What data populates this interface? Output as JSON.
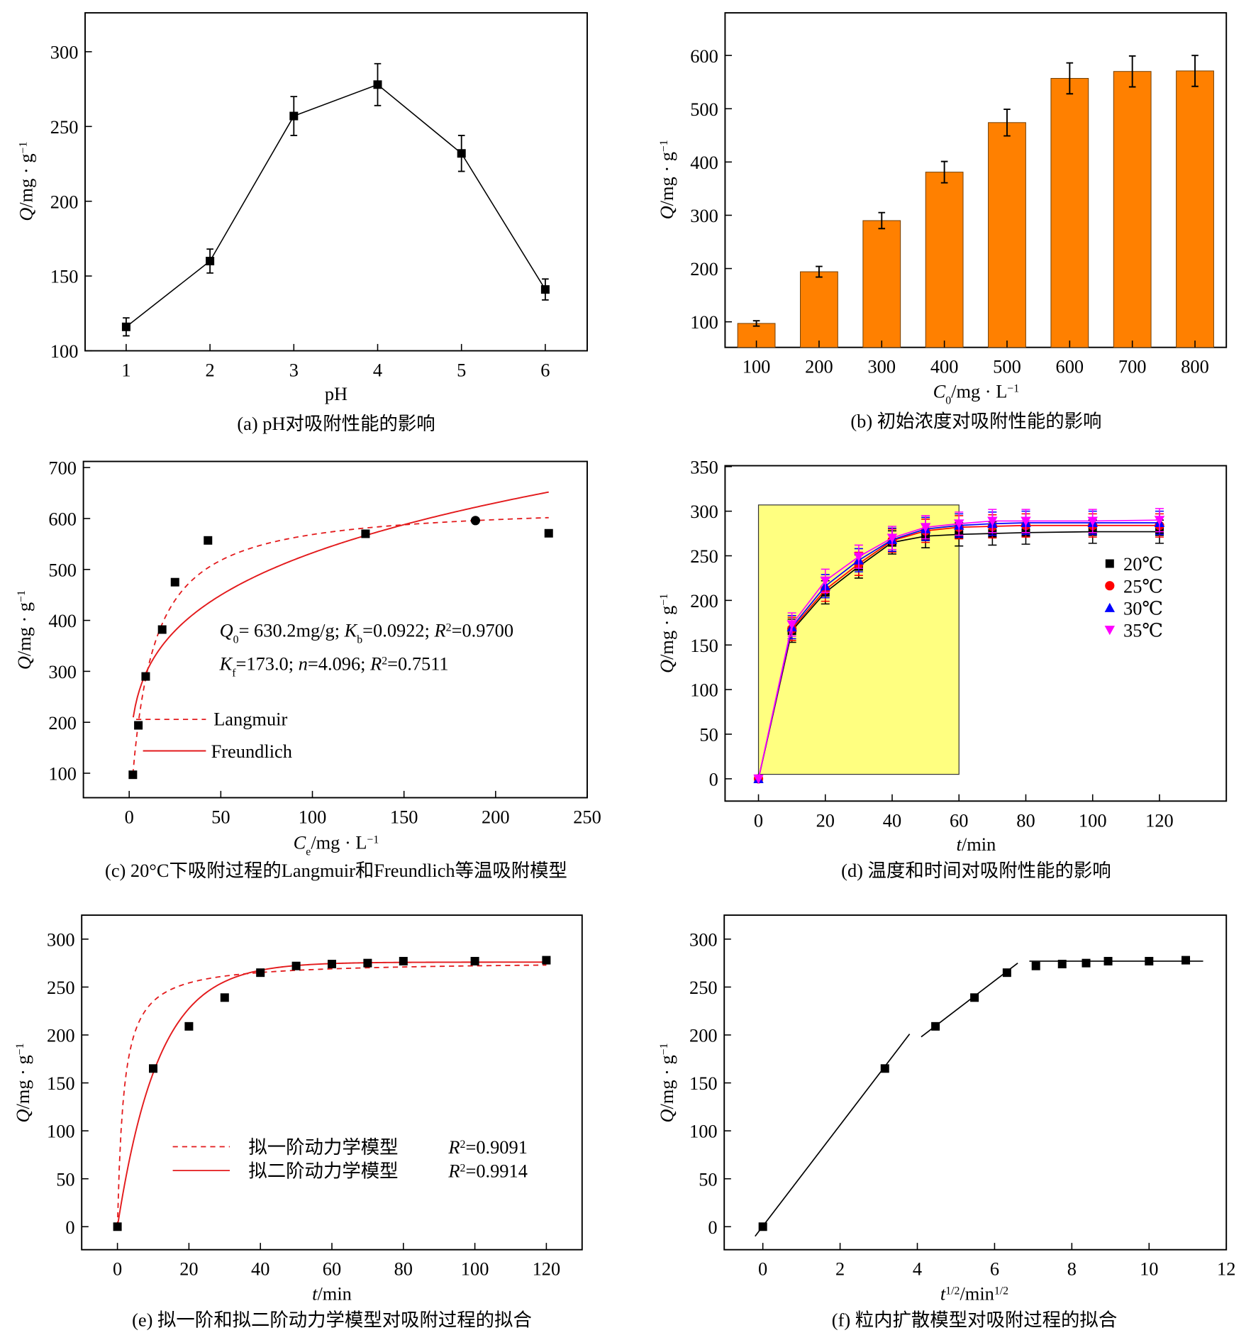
{
  "chart_data": [
    {
      "type": "line",
      "caption": "(a) pH对吸附性能的影响",
      "xlabel": [
        {
          "t": "pH"
        }
      ],
      "ylabel": [
        {
          "t": "Q",
          "s": "i"
        },
        {
          "t": "/mg · g"
        },
        {
          "t": "−1",
          "s": "sup"
        }
      ],
      "xlim": [
        0.51,
        6.5
      ],
      "ylim": [
        100,
        326
      ],
      "xticks": [
        1,
        2,
        3,
        4,
        5,
        6
      ],
      "yticks": [
        100,
        150,
        200,
        250,
        300
      ],
      "x": [
        1,
        2,
        3,
        4,
        5,
        6
      ],
      "series": [
        {
          "values": [
            116,
            160,
            257,
            278,
            232,
            141
          ],
          "errors": [
            6,
            8,
            13,
            14,
            12,
            7
          ],
          "color": "#000000",
          "marker": "square"
        }
      ]
    },
    {
      "type": "bar",
      "caption": "(b) 初始浓度对吸附性能的影响",
      "xlabel": [
        {
          "t": "C",
          "s": "i"
        },
        {
          "t": "0",
          "s": "sub"
        },
        {
          "t": "/mg · L"
        },
        {
          "t": "−1",
          "s": "sup"
        }
      ],
      "ylabel": [
        {
          "t": "Q",
          "s": "i"
        },
        {
          "t": "/mg · g"
        },
        {
          "t": "−1",
          "s": "sup"
        }
      ],
      "categories": [
        "100",
        "200",
        "300",
        "400",
        "500",
        "600",
        "700",
        "800"
      ],
      "values": [
        97,
        194,
        290,
        381,
        474,
        557,
        570,
        571
      ],
      "errors": [
        5,
        10,
        15,
        20,
        25,
        29,
        29,
        29
      ],
      "ylim": [
        52,
        680
      ],
      "yticks": [
        100,
        200,
        300,
        400,
        500,
        600
      ],
      "bar_color": "#ff8000"
    },
    {
      "type": "scatter",
      "caption": "(c) 20°C下吸附过程的Langmuir和Freundlich等温吸附模型",
      "xlabel": [
        {
          "t": "C",
          "s": "i"
        },
        {
          "t": "e",
          "s": "sub"
        },
        {
          "t": "/mg · L"
        },
        {
          "t": "−1",
          "s": "sup"
        }
      ],
      "ylabel": [
        {
          "t": "Q",
          "s": "i"
        },
        {
          "t": "/mg · g"
        },
        {
          "t": "−1",
          "s": "sup"
        }
      ],
      "xlim": [
        -25,
        250
      ],
      "ylim": [
        52,
        712
      ],
      "xticks": [
        0,
        50,
        100,
        150,
        200,
        250
      ],
      "yticks": [
        100,
        200,
        300,
        400,
        500,
        600,
        700
      ],
      "points": [
        [
          2,
          97
        ],
        [
          5,
          194
        ],
        [
          9,
          290
        ],
        [
          18,
          382
        ],
        [
          25,
          475
        ],
        [
          43,
          557
        ],
        [
          129,
          570
        ],
        [
          189,
          596
        ],
        [
          229,
          571
        ]
      ],
      "fits": {
        "langmuir": {
          "name": "Langmuir",
          "Q0": 630.2,
          "Kb": 0.0922,
          "R2": 0.97,
          "color": "#e31a1c",
          "dash": true
        },
        "freundlich": {
          "name": "Freundlich",
          "Kf": 173.0,
          "n": 4.096,
          "R2": 0.7511,
          "color": "#e31a1c",
          "dash": false
        }
      },
      "annotations": [
        [
          {
            "t": "Q",
            "s": "i"
          },
          {
            "t": "0",
            "s": "sub"
          },
          {
            "t": "= 630.2mg/g; "
          },
          {
            "t": "K",
            "s": "i"
          },
          {
            "t": "b",
            "s": "sub"
          },
          {
            "t": "=0.0922; "
          },
          {
            "t": "R",
            "s": "i"
          },
          {
            "t": "2",
            "s": "sup"
          },
          {
            "t": "=0.9700"
          }
        ],
        [
          {
            "t": "K",
            "s": "i"
          },
          {
            "t": "f",
            "s": "sub"
          },
          {
            "t": "=173.0; "
          },
          {
            "t": "n",
            "s": "i"
          },
          {
            "t": "=4.096; "
          },
          {
            "t": "R",
            "s": "i"
          },
          {
            "t": "2",
            "s": "sup"
          },
          {
            "t": "=0.7511"
          }
        ]
      ]
    },
    {
      "type": "line",
      "caption": "(d) 温度和时间对吸附性能的影响",
      "xlabel": [
        {
          "t": "t",
          "s": "i"
        },
        {
          "t": "/min"
        }
      ],
      "ylabel": [
        {
          "t": "Q",
          "s": "i"
        },
        {
          "t": "/mg · g"
        },
        {
          "t": "−1",
          "s": "sup"
        }
      ],
      "xlim": [
        -10,
        140
      ],
      "ylim": [
        -25,
        351
      ],
      "xticks": [
        0,
        20,
        40,
        60,
        80,
        100,
        120
      ],
      "yticks": [
        0,
        50,
        100,
        150,
        200,
        250,
        300,
        350
      ],
      "x": [
        0,
        10,
        20,
        30,
        40,
        50,
        60,
        70,
        80,
        100,
        120
      ],
      "highlight": {
        "x": [
          0,
          60
        ],
        "y": [
          5,
          307
        ],
        "color": "#ffff80"
      },
      "legend": "right",
      "series": [
        {
          "name": "20℃",
          "color": "#000000",
          "marker": "square",
          "values": [
            0,
            166,
            209,
            238,
            265,
            272,
            274,
            275,
            276,
            277,
            277
          ],
          "error": 13
        },
        {
          "name": "25℃",
          "color": "#ff0000",
          "marker": "circle",
          "values": [
            0,
            168,
            212,
            241,
            267,
            278,
            282,
            283,
            284,
            284,
            284
          ],
          "error": 13
        },
        {
          "name": "30℃",
          "color": "#0000ff",
          "marker": "triangle-up",
          "values": [
            0,
            170,
            216,
            245,
            268,
            280,
            284,
            286,
            287,
            287,
            287
          ],
          "error": 13
        },
        {
          "name": "35℃",
          "color": "#ff00ff",
          "marker": "triangle-down",
          "values": [
            0,
            173,
            222,
            249,
            270,
            282,
            286,
            289,
            289,
            289,
            290
          ],
          "error": 13
        }
      ]
    },
    {
      "type": "scatter",
      "caption": "(e) 拟一阶和拟二阶动力学模型对吸附过程的拟合",
      "xlabel": [
        {
          "t": "t",
          "s": "i"
        },
        {
          "t": "/min"
        }
      ],
      "ylabel": [
        {
          "t": "Q",
          "s": "i"
        },
        {
          "t": "/mg · g"
        },
        {
          "t": "−1",
          "s": "sup"
        }
      ],
      "xlim": [
        -10,
        130
      ],
      "ylim": [
        -24,
        325
      ],
      "xticks": [
        0,
        20,
        40,
        60,
        80,
        100,
        120
      ],
      "yticks": [
        0,
        50,
        100,
        150,
        200,
        250,
        300
      ],
      "x": [
        0,
        10,
        20,
        30,
        40,
        50,
        60,
        70,
        80,
        100,
        120
      ],
      "values": [
        0,
        165,
        209,
        239,
        265,
        272,
        274,
        275,
        277,
        277,
        278
      ],
      "legend": [
        {
          "name": "拟一阶动力学模型",
          "r2": [
            {
              "t": "R",
              "s": "i"
            },
            {
              "t": "2",
              "s": "sup"
            },
            {
              "t": "=0.9091"
            }
          ],
          "dash": true,
          "color": "#e31a1c"
        },
        {
          "name": "拟二阶动力学模型",
          "r2": [
            {
              "t": "R",
              "s": "i"
            },
            {
              "t": "2",
              "s": "sup"
            },
            {
              "t": "=0.9914"
            }
          ],
          "dash": false,
          "color": "#e31a1c"
        }
      ]
    },
    {
      "type": "scatter",
      "caption": "(f) 粒内扩散模型对吸附过程的拟合",
      "xlabel": [
        {
          "t": "t",
          "s": "i"
        },
        {
          "t": "1/2",
          "s": "sup"
        },
        {
          "t": "/min"
        },
        {
          "t": "1/2",
          "s": "sup"
        }
      ],
      "ylabel": [
        {
          "t": "Q",
          "s": "i"
        },
        {
          "t": "/mg · g"
        },
        {
          "t": "−1",
          "s": "sup"
        }
      ],
      "xlim": [
        -1,
        12
      ],
      "ylim": [
        -24,
        325
      ],
      "xticks": [
        0,
        2,
        4,
        6,
        8,
        10,
        12
      ],
      "yticks": [
        0,
        50,
        100,
        150,
        200,
        250,
        300
      ],
      "points": [
        [
          0,
          0
        ],
        [
          3.16,
          165
        ],
        [
          4.47,
          209
        ],
        [
          5.48,
          239
        ],
        [
          6.32,
          265
        ],
        [
          7.07,
          272
        ],
        [
          7.75,
          274
        ],
        [
          8.37,
          275
        ],
        [
          8.94,
          277
        ],
        [
          10,
          277
        ],
        [
          10.95,
          278
        ]
      ],
      "fit_lines": [
        [
          [
            -0.2,
            -10
          ],
          [
            3.8,
            201
          ]
        ],
        [
          [
            4.1,
            198
          ],
          [
            6.6,
            275
          ]
        ],
        [
          [
            6.9,
            277
          ],
          [
            11.4,
            277
          ]
        ]
      ]
    }
  ]
}
